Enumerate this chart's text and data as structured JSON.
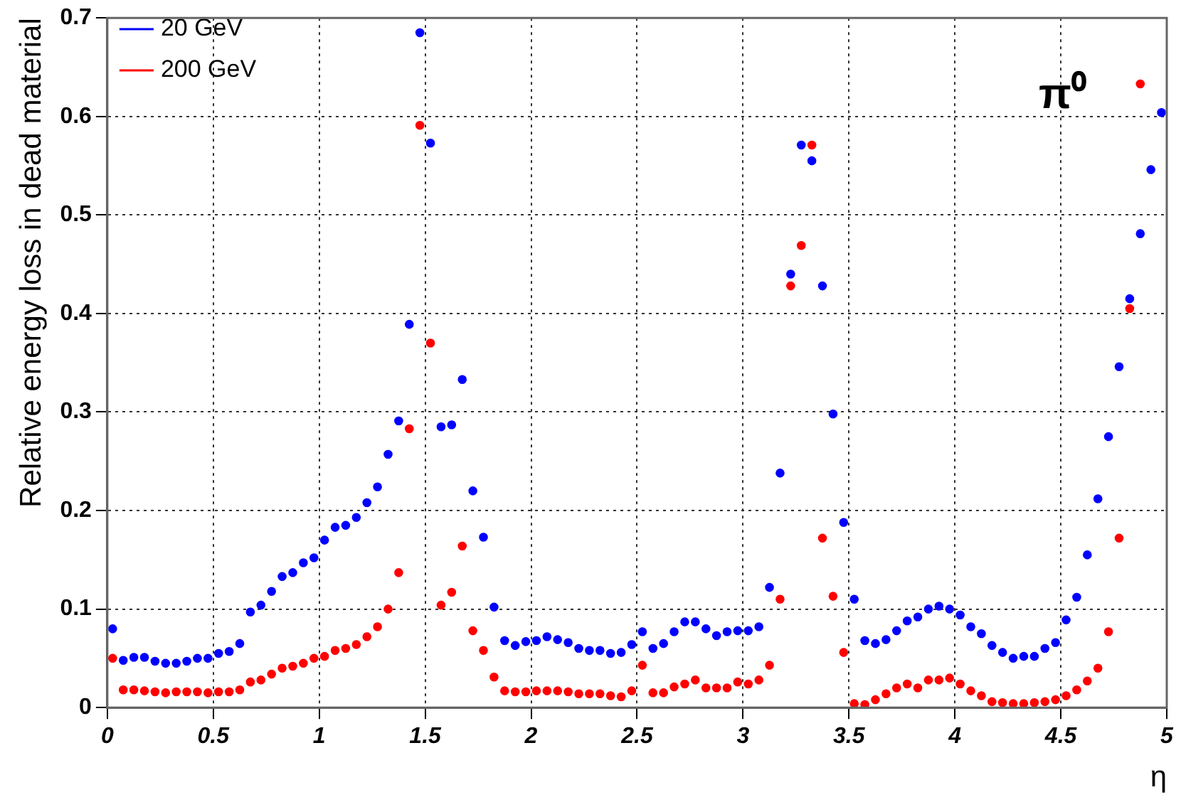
{
  "chart_data": {
    "type": "scatter",
    "xlabel": "η",
    "ylabel": "Relative energy loss in dead material",
    "annotations": [
      "π⁰"
    ],
    "x": [
      0.025,
      0.075,
      0.125,
      0.175,
      0.225,
      0.275,
      0.325,
      0.375,
      0.425,
      0.475,
      0.525,
      0.575,
      0.625,
      0.675,
      0.725,
      0.775,
      0.825,
      0.875,
      0.925,
      0.975,
      1.025,
      1.075,
      1.125,
      1.175,
      1.225,
      1.275,
      1.325,
      1.375,
      1.425,
      1.475,
      1.525,
      1.575,
      1.625,
      1.675,
      1.725,
      1.775,
      1.825,
      1.875,
      1.925,
      1.975,
      2.025,
      2.075,
      2.125,
      2.175,
      2.225,
      2.275,
      2.325,
      2.375,
      2.425,
      2.475,
      2.525,
      2.575,
      2.625,
      2.675,
      2.725,
      2.775,
      2.825,
      2.875,
      2.925,
      2.975,
      3.025,
      3.075,
      3.125,
      3.175,
      3.225,
      3.275,
      3.325,
      3.375,
      3.425,
      3.475,
      3.525,
      3.575,
      3.625,
      3.675,
      3.725,
      3.775,
      3.825,
      3.875,
      3.925,
      3.975,
      4.025,
      4.075,
      4.125,
      4.175,
      4.225,
      4.275,
      4.325,
      4.375,
      4.425,
      4.475,
      4.525,
      4.575,
      4.625,
      4.675,
      4.725,
      4.775,
      4.825,
      4.875,
      4.925,
      4.975
    ],
    "series": [
      {
        "name": "20 GeV",
        "color": "#0000ff",
        "values": [
          0.08,
          0.048,
          0.051,
          0.051,
          0.047,
          0.045,
          0.045,
          0.047,
          0.05,
          0.05,
          0.055,
          0.057,
          0.065,
          0.097,
          0.104,
          0.118,
          0.133,
          0.137,
          0.147,
          0.152,
          0.17,
          0.183,
          0.185,
          0.193,
          0.208,
          0.224,
          0.257,
          0.291,
          0.389,
          0.685,
          0.573,
          0.285,
          0.287,
          0.333,
          0.22,
          0.173,
          0.102,
          0.068,
          0.063,
          0.067,
          0.068,
          0.072,
          0.069,
          0.066,
          0.06,
          0.058,
          0.058,
          0.055,
          0.056,
          0.064,
          0.077,
          0.06,
          0.065,
          0.077,
          0.087,
          0.087,
          0.08,
          0.073,
          0.077,
          0.078,
          0.078,
          0.082,
          0.122,
          0.238,
          0.44,
          0.571,
          0.555,
          0.428,
          0.298,
          0.188,
          0.11,
          0.068,
          0.065,
          0.069,
          0.078,
          0.088,
          0.092,
          0.1,
          0.103,
          0.1,
          0.094,
          0.082,
          0.075,
          0.063,
          0.056,
          0.05,
          0.052,
          0.052,
          0.06,
          0.066,
          0.089,
          0.112,
          0.155,
          0.212,
          0.275,
          0.346,
          0.415,
          0.481,
          0.546,
          0.604
        ]
      },
      {
        "name": "200 GeV",
        "color": "#ff0000",
        "values": [
          0.05,
          0.018,
          0.018,
          0.017,
          0.016,
          0.015,
          0.016,
          0.016,
          0.016,
          0.015,
          0.016,
          0.016,
          0.018,
          0.026,
          0.028,
          0.034,
          0.04,
          0.042,
          0.045,
          0.05,
          0.052,
          0.058,
          0.06,
          0.064,
          0.072,
          0.082,
          0.1,
          0.137,
          0.283,
          0.591,
          0.37,
          0.104,
          0.117,
          0.164,
          0.078,
          0.058,
          0.031,
          0.017,
          0.016,
          0.016,
          0.017,
          0.017,
          0.017,
          0.016,
          0.014,
          0.014,
          0.014,
          0.012,
          0.011,
          0.017,
          0.043,
          0.015,
          0.015,
          0.021,
          0.024,
          0.028,
          0.02,
          0.02,
          0.02,
          0.026,
          0.024,
          0.028,
          0.043,
          0.11,
          0.428,
          0.469,
          0.571,
          0.172,
          0.113,
          0.056,
          0.004,
          0.003,
          0.008,
          0.014,
          0.02,
          0.024,
          0.02,
          0.028,
          0.028,
          0.03,
          0.024,
          0.017,
          0.012,
          0.006,
          0.005,
          0.004,
          0.004,
          0.005,
          0.006,
          0.008,
          0.012,
          0.018,
          0.027,
          0.04,
          0.077,
          0.172,
          0.405,
          0.633,
          null,
          null
        ]
      }
    ],
    "xlim": [
      0,
      5
    ],
    "xticks": [
      0,
      0.5,
      1,
      1.5,
      2,
      2.5,
      3,
      3.5,
      4,
      4.5,
      5
    ],
    "ylim": [
      0,
      0.7
    ],
    "yticks": [
      0,
      0.1,
      0.2,
      0.3,
      0.4,
      0.5,
      0.6,
      0.7
    ],
    "grid": true,
    "legend": "top left",
    "marker": "circle"
  }
}
